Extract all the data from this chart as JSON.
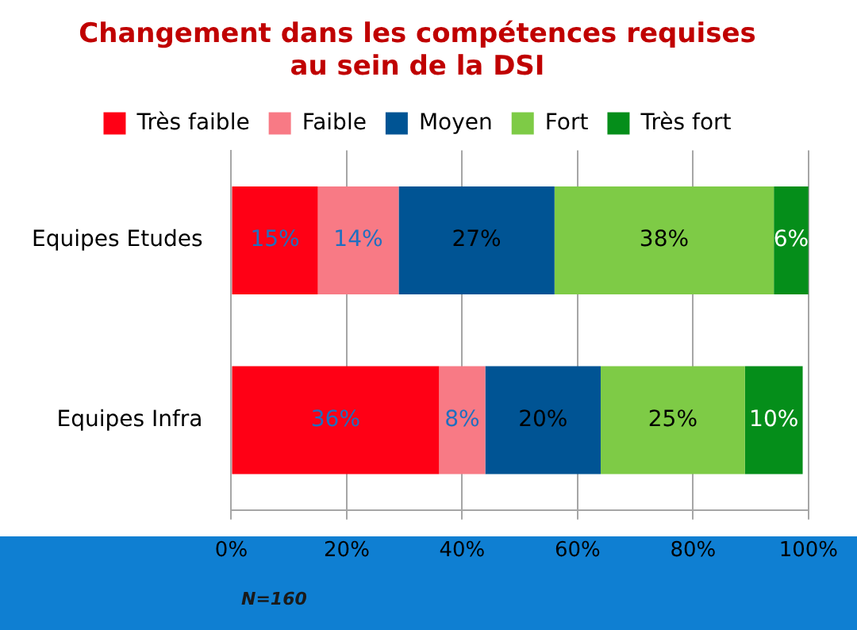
{
  "chart_data": {
    "type": "bar",
    "orientation": "horizontal",
    "stacked": true,
    "title": "Changement dans les compétences requises\nau sein de la DSI",
    "categories": [
      "Equipes Etudes",
      "Equipes Infra"
    ],
    "series": [
      {
        "name": "Très faible",
        "color": "#ff0015",
        "values": [
          15,
          36
        ],
        "value_labels": [
          "15%",
          "36%"
        ]
      },
      {
        "name": "Faible",
        "color": "#f87a85",
        "values": [
          14,
          8
        ],
        "value_labels": [
          "14%",
          "8%"
        ]
      },
      {
        "name": "Moyen",
        "color": "#005494",
        "values": [
          27,
          20
        ],
        "value_labels": [
          "27%",
          "20%"
        ]
      },
      {
        "name": "Fort",
        "color": "#7ecb46",
        "values": [
          38,
          25
        ],
        "value_labels": [
          "38%",
          "25%"
        ]
      },
      {
        "name": "Très fort",
        "color": "#058e1a",
        "values": [
          6,
          10
        ],
        "value_labels": [
          "6%",
          "10%"
        ]
      }
    ],
    "xlim": [
      0,
      100
    ],
    "xticks": [
      {
        "value": 0,
        "label": "0%"
      },
      {
        "value": 20,
        "label": "20%"
      },
      {
        "value": 40,
        "label": "40%"
      },
      {
        "value": 60,
        "label": "60%"
      },
      {
        "value": 80,
        "label": "80%"
      },
      {
        "value": 100,
        "label": "100%"
      }
    ],
    "grid": "x",
    "legend": "top",
    "annotations": [
      "N=160"
    ]
  }
}
